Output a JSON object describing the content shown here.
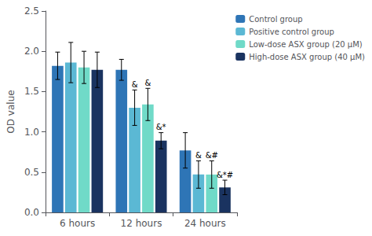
{
  "chart_data": {
    "type": "bar",
    "categories": [
      "6 hours",
      "12 hours",
      "24 hours"
    ],
    "series": [
      {
        "name": "Control group",
        "color": "#2e75b6",
        "values": [
          1.82,
          1.77,
          0.77
        ],
        "errors": [
          0.17,
          0.13,
          0.22
        ],
        "annotations": [
          null,
          null,
          null
        ]
      },
      {
        "name": "Positive control group",
        "color": "#5bb8d4",
        "values": [
          1.86,
          1.3,
          0.47
        ],
        "errors": [
          0.25,
          0.22,
          0.17
        ],
        "annotations": [
          null,
          "&",
          "&"
        ]
      },
      {
        "name": "Low-dose ASX group (20 μM)",
        "color": "#70dac8",
        "values": [
          1.8,
          1.34,
          0.47
        ],
        "errors": [
          0.2,
          0.2,
          0.17
        ],
        "annotations": [
          null,
          "&",
          "&#"
        ]
      },
      {
        "name": "High-dose ASX group (40 μM)",
        "color": "#1a3360",
        "values": [
          1.77,
          0.89,
          0.31
        ],
        "errors": [
          0.22,
          0.1,
          0.09
        ],
        "annotations": [
          null,
          "&*",
          "&*#"
        ]
      }
    ],
    "ylabel": "OD value",
    "ylim": [
      0.0,
      2.5
    ],
    "yticks": [
      {
        "value": 0,
        "label": "0.0"
      },
      0.5,
      {
        "value": 1,
        "label": "1.0"
      },
      1.5,
      {
        "value": 2,
        "label": "2.0"
      },
      2.5
    ],
    "grid": false,
    "legend": "upper right"
  }
}
